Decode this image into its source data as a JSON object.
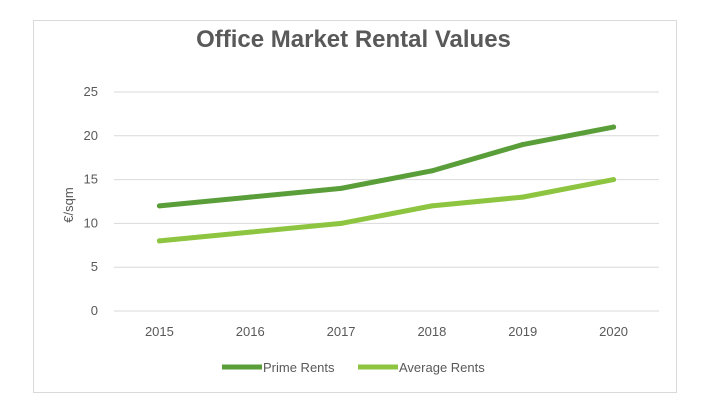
{
  "chart_data": {
    "type": "line",
    "title": "Office Market Rental Values",
    "xlabel": "",
    "ylabel": "€/sqm",
    "categories": [
      "2015",
      "2016",
      "2017",
      "2018",
      "2019",
      "2020"
    ],
    "ylim": [
      0,
      25
    ],
    "yticks": [
      0,
      5,
      10,
      15,
      20,
      25
    ],
    "grid": true,
    "legend_position": "bottom",
    "series": [
      {
        "name": "Prime Rents",
        "values": [
          12,
          13,
          14,
          16,
          19,
          21
        ],
        "color": "#5a9e3a"
      },
      {
        "name": "Average Rents",
        "values": [
          8,
          9,
          10,
          12,
          13,
          15
        ],
        "color": "#8dc540"
      }
    ]
  }
}
